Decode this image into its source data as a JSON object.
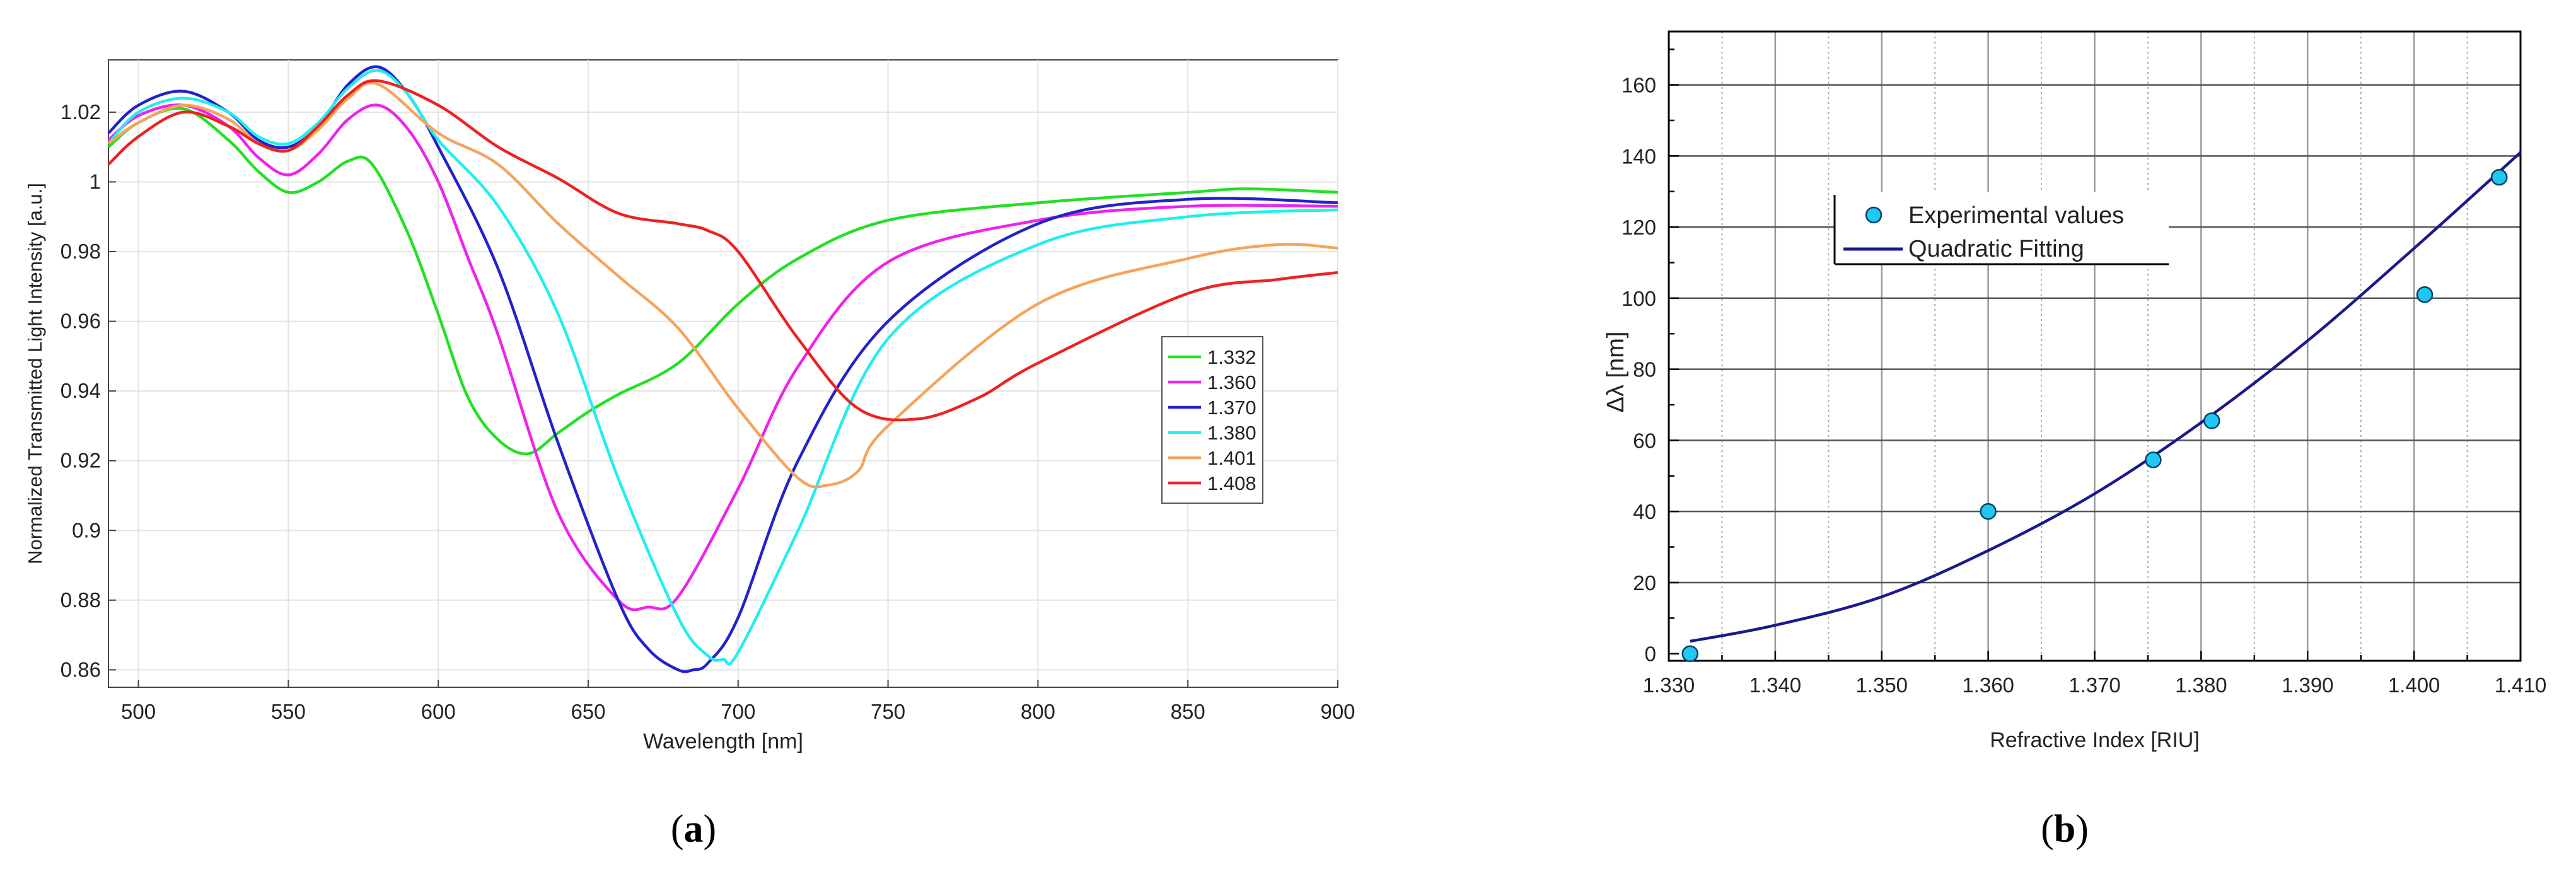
{
  "chart_data": [
    {
      "type": "line",
      "panel_label": "a",
      "xlabel": "Wavelength [nm]",
      "ylabel": "Normalized Transmitted Light Intensity [a.u.]",
      "xlim": [
        490,
        900
      ],
      "ylim": [
        0.855,
        1.035
      ],
      "xticks": [
        500,
        550,
        600,
        650,
        700,
        750,
        800,
        850,
        900
      ],
      "yticks": [
        0.86,
        0.88,
        0.9,
        0.92,
        0.94,
        0.96,
        0.98,
        1,
        1.02
      ],
      "ytick_labels": [
        "0.86",
        "0.88",
        "0.9",
        "0.92",
        "0.94",
        "0.96",
        "0.98",
        "1",
        "1.02"
      ],
      "grid": true,
      "legend_position": "right",
      "series": [
        {
          "name": "1.332",
          "color": "#22e022",
          "x": [
            490,
            500,
            515,
            530,
            540,
            550,
            560,
            570,
            578,
            590,
            600,
            610,
            620,
            630,
            640,
            650,
            660,
            680,
            700,
            720,
            750,
            800,
            850,
            870,
            900
          ],
          "y": [
            1.01,
            1.017,
            1.021,
            1.012,
            1.003,
            0.997,
            1.0,
            1.006,
            1.005,
            0.985,
            0.962,
            0.938,
            0.926,
            0.922,
            0.928,
            0.934,
            0.939,
            0.948,
            0.965,
            0.978,
            0.989,
            0.994,
            0.997,
            0.998,
            0.997
          ]
        },
        {
          "name": "1.360",
          "color": "#ee22ee",
          "x": [
            490,
            500,
            515,
            530,
            540,
            550,
            560,
            570,
            580,
            590,
            600,
            610,
            620,
            640,
            660,
            670,
            680,
            700,
            720,
            750,
            800,
            850,
            900
          ],
          "y": [
            1.012,
            1.019,
            1.022,
            1.016,
            1.007,
            1.002,
            1.008,
            1.018,
            1.022,
            1.015,
            1.0,
            0.978,
            0.956,
            0.905,
            0.88,
            0.878,
            0.881,
            0.912,
            0.947,
            0.977,
            0.989,
            0.993,
            0.993
          ]
        },
        {
          "name": "1.370",
          "color": "#2222cc",
          "x": [
            490,
            500,
            515,
            530,
            540,
            550,
            560,
            570,
            580,
            590,
            600,
            620,
            640,
            660,
            670,
            680,
            685,
            690,
            700,
            720,
            750,
            800,
            850,
            900
          ],
          "y": [
            1.014,
            1.022,
            1.026,
            1.02,
            1.012,
            1.01,
            1.016,
            1.028,
            1.033,
            1.025,
            1.01,
            0.975,
            0.925,
            0.88,
            0.866,
            0.86,
            0.86,
            0.862,
            0.875,
            0.92,
            0.96,
            0.988,
            0.995,
            0.994
          ]
        },
        {
          "name": "1.380",
          "color": "#22eeee",
          "x": [
            490,
            500,
            515,
            530,
            540,
            550,
            560,
            570,
            580,
            590,
            600,
            620,
            640,
            660,
            680,
            690,
            695,
            700,
            720,
            750,
            800,
            850,
            900
          ],
          "y": [
            1.011,
            1.02,
            1.024,
            1.02,
            1.013,
            1.011,
            1.017,
            1.027,
            1.032,
            1.025,
            1.012,
            0.993,
            0.962,
            0.915,
            0.875,
            0.864,
            0.863,
            0.865,
            0.9,
            0.955,
            0.982,
            0.99,
            0.992
          ]
        },
        {
          "name": "1.401",
          "color": "#f5a45c",
          "x": [
            490,
            500,
            515,
            530,
            540,
            550,
            560,
            570,
            580,
            600,
            620,
            640,
            660,
            680,
            700,
            720,
            730,
            740,
            750,
            800,
            850,
            880,
            900
          ],
          "y": [
            1.011,
            1.017,
            1.022,
            1.018,
            1.011,
            1.009,
            1.015,
            1.024,
            1.028,
            1.014,
            1.005,
            0.988,
            0.973,
            0.958,
            0.935,
            0.915,
            0.913,
            0.917,
            0.93,
            0.965,
            0.978,
            0.982,
            0.981
          ]
        },
        {
          "name": "1.408",
          "color": "#ee2222",
          "x": [
            490,
            500,
            515,
            530,
            540,
            550,
            560,
            570,
            580,
            600,
            620,
            640,
            660,
            680,
            690,
            700,
            720,
            740,
            760,
            780,
            800,
            850,
            880,
            900
          ],
          "y": [
            1.005,
            1.013,
            1.02,
            1.016,
            1.011,
            1.009,
            1.016,
            1.025,
            1.029,
            1.022,
            1.01,
            1.001,
            0.991,
            0.988,
            0.986,
            0.98,
            0.955,
            0.935,
            0.932,
            0.938,
            0.948,
            0.968,
            0.972,
            0.974
          ]
        }
      ]
    },
    {
      "type": "scatter",
      "panel_label": "b",
      "xlabel": "Refractive Index [RIU]",
      "ylabel": "Δλ [nm]",
      "xlim": [
        1.33,
        1.41
      ],
      "ylim": [
        -2,
        175
      ],
      "xticks": [
        1.33,
        1.34,
        1.35,
        1.36,
        1.37,
        1.38,
        1.39,
        1.4,
        1.41
      ],
      "xtick_labels": [
        "1.330",
        "1.340",
        "1.350",
        "1.360",
        "1.370",
        "1.380",
        "1.390",
        "1.400",
        "1.410"
      ],
      "yticks": [
        0,
        20,
        40,
        60,
        80,
        100,
        120,
        140,
        160
      ],
      "grid": true,
      "legend_position": "top-left",
      "series": [
        {
          "name": "Experimental values",
          "kind": "points",
          "color": "#1ec8f0",
          "x": [
            1.332,
            1.36,
            1.3755,
            1.381,
            1.401,
            1.408
          ],
          "y": [
            0,
            40,
            54.5,
            65.5,
            101,
            134
          ]
        },
        {
          "name": "Quadratic Fitting",
          "kind": "curve",
          "color": "#1a1a8c",
          "x": [
            1.332,
            1.34,
            1.35,
            1.36,
            1.37,
            1.38,
            1.39,
            1.4,
            1.41
          ],
          "y": [
            3.5,
            8,
            16,
            29,
            45,
            65,
            88,
            114,
            141
          ]
        }
      ]
    }
  ]
}
